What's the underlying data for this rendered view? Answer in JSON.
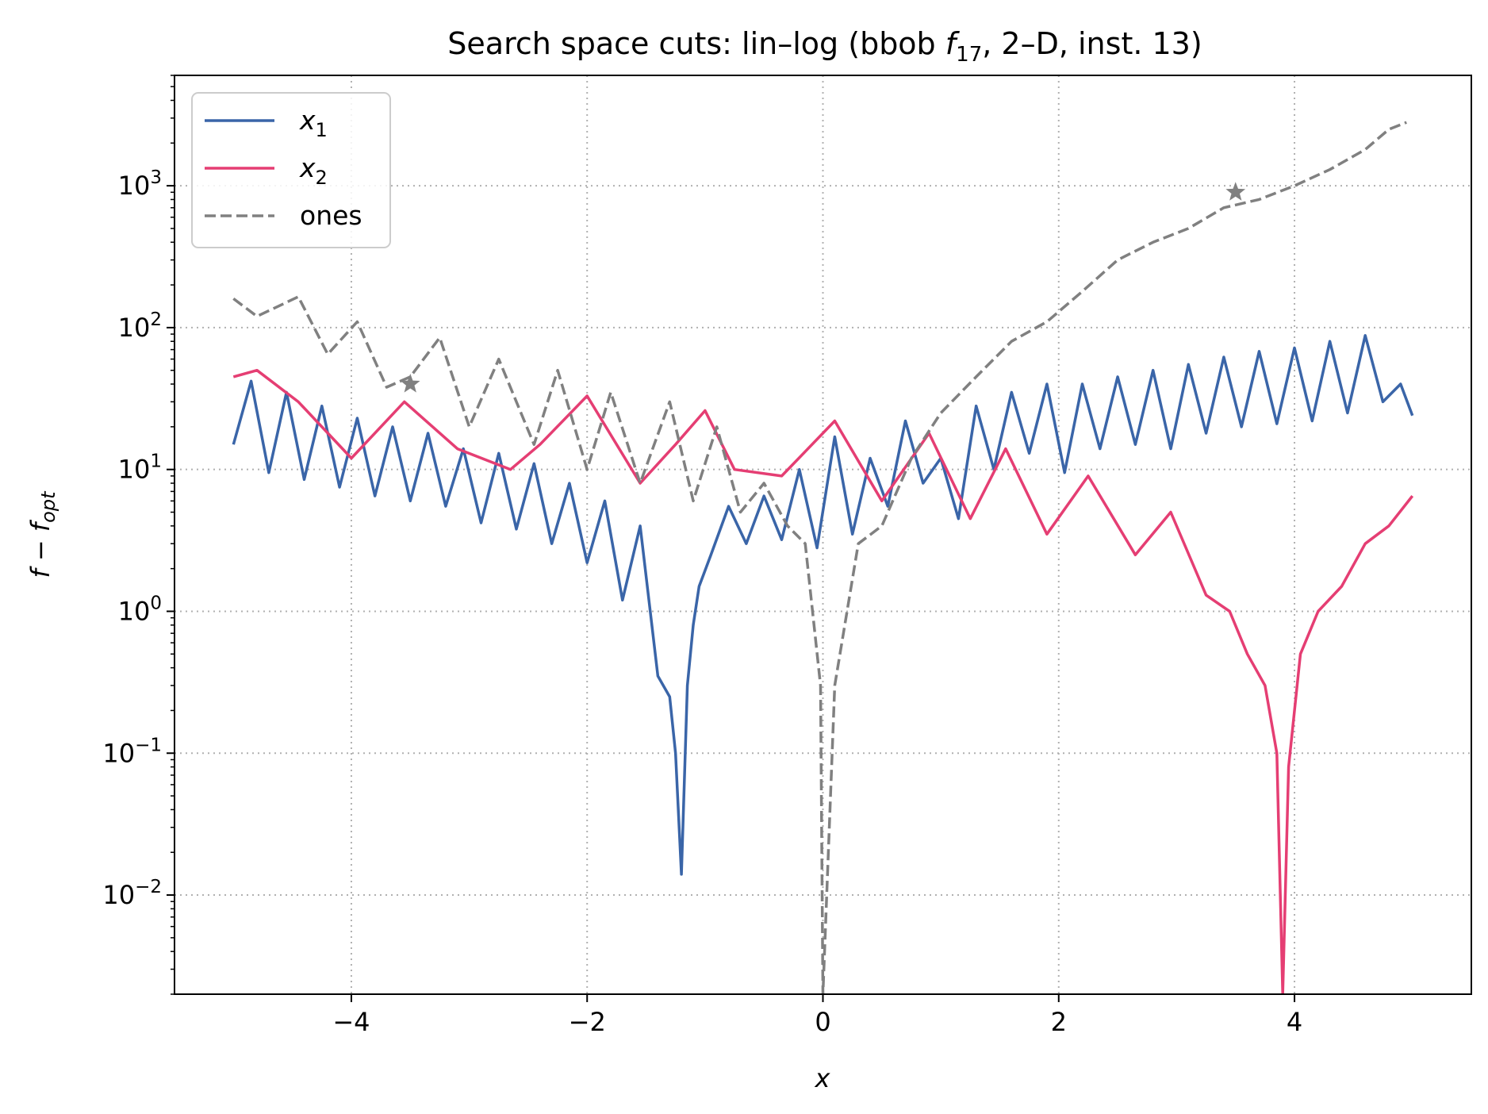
{
  "chart_data": {
    "type": "line",
    "title": {
      "main": "Search space cuts: lin–log (bbob ",
      "f": "f",
      "sub": "17",
      "rest": ", 2–D, inst. 13)"
    },
    "xlabel": "x",
    "ylabel": {
      "base": "f − f",
      "sub": "opt"
    },
    "xlim": [
      -5.5,
      5.5
    ],
    "ylim": [
      0.002,
      6000
    ],
    "yscale": "log",
    "grid": true,
    "legend_position": "top-left",
    "x_ticks": [
      {
        "value": -4,
        "label": "−4"
      },
      {
        "value": -2,
        "label": "−2"
      },
      {
        "value": 0,
        "label": "0"
      },
      {
        "value": 2,
        "label": "2"
      },
      {
        "value": 4,
        "label": "4"
      }
    ],
    "y_ticks": [
      {
        "value": 0.01,
        "base": "10",
        "exp": "−2"
      },
      {
        "value": 0.1,
        "base": "10",
        "exp": "−1"
      },
      {
        "value": 1,
        "base": "10",
        "exp": "0"
      },
      {
        "value": 10,
        "base": "10",
        "exp": "1"
      },
      {
        "value": 100,
        "base": "10",
        "exp": "2"
      },
      {
        "value": 1000,
        "base": "10",
        "exp": "3"
      }
    ],
    "series": [
      {
        "name": "x",
        "name_sub": "1",
        "color": "#3a65a8",
        "style": "solid",
        "x": [
          -5.0,
          -4.85,
          -4.7,
          -4.55,
          -4.4,
          -4.25,
          -4.1,
          -3.95,
          -3.8,
          -3.65,
          -3.5,
          -3.35,
          -3.2,
          -3.05,
          -2.9,
          -2.75,
          -2.6,
          -2.45,
          -2.3,
          -2.15,
          -2.0,
          -1.85,
          -1.7,
          -1.55,
          -1.4,
          -1.3,
          -1.25,
          -1.2,
          -1.15,
          -1.1,
          -1.05,
          -0.95,
          -0.8,
          -0.65,
          -0.5,
          -0.35,
          -0.2,
          -0.05,
          0.1,
          0.25,
          0.4,
          0.55,
          0.7,
          0.85,
          1.0,
          1.15,
          1.3,
          1.45,
          1.6,
          1.75,
          1.9,
          2.05,
          2.2,
          2.35,
          2.5,
          2.65,
          2.8,
          2.95,
          3.1,
          3.25,
          3.4,
          3.55,
          3.7,
          3.85,
          4.0,
          4.15,
          4.3,
          4.45,
          4.6,
          4.75,
          4.9,
          5.0
        ],
        "y": [
          15,
          42,
          9.5,
          35,
          8.5,
          28,
          7.5,
          23,
          6.5,
          20,
          6,
          18,
          5.5,
          14,
          4.2,
          13,
          3.8,
          11,
          3,
          8,
          2.2,
          6,
          1.2,
          4,
          0.35,
          0.25,
          0.1,
          0.014,
          0.3,
          0.8,
          1.5,
          2.5,
          5.5,
          3,
          6.5,
          3.2,
          10,
          2.8,
          17,
          3.5,
          12,
          5.5,
          22,
          8,
          12,
          4.5,
          28,
          10,
          35,
          13,
          40,
          9.5,
          40,
          14,
          45,
          15,
          50,
          14,
          55,
          18,
          62,
          20,
          68,
          21,
          72,
          22,
          80,
          25,
          88,
          30,
          40,
          24
        ]
      },
      {
        "name": "x",
        "name_sub": "2",
        "color": "#e53e73",
        "style": "solid",
        "x": [
          -5.0,
          -4.8,
          -4.45,
          -4.0,
          -3.55,
          -3.1,
          -2.65,
          -2.4,
          -2.0,
          -1.55,
          -1.25,
          -1.0,
          -0.75,
          -0.35,
          0.1,
          0.5,
          0.9,
          1.25,
          1.55,
          1.9,
          2.25,
          2.65,
          2.95,
          3.25,
          3.45,
          3.6,
          3.75,
          3.85,
          3.9,
          3.95,
          4.05,
          4.2,
          4.4,
          4.6,
          4.8,
          5.0
        ],
        "y": [
          45,
          50,
          30,
          12,
          30,
          14,
          10,
          15,
          33,
          8,
          15,
          26,
          10,
          9,
          22,
          6,
          18,
          4.5,
          14,
          3.5,
          9,
          2.5,
          5,
          1.3,
          1,
          0.5,
          0.3,
          0.1,
          0.002,
          0.08,
          0.5,
          1,
          1.5,
          3,
          4,
          6.5
        ]
      },
      {
        "name": "ones",
        "color": "#808080",
        "style": "dashed",
        "x": [
          -5.0,
          -4.8,
          -4.45,
          -4.2,
          -3.95,
          -3.7,
          -3.5,
          -3.25,
          -3.0,
          -2.75,
          -2.45,
          -2.25,
          -2.0,
          -1.8,
          -1.55,
          -1.3,
          -1.1,
          -0.9,
          -0.7,
          -0.5,
          -0.3,
          -0.15,
          -0.02,
          0.0,
          0.1,
          0.3,
          0.5,
          0.75,
          1.0,
          1.3,
          1.6,
          1.9,
          2.2,
          2.5,
          2.8,
          3.1,
          3.4,
          3.7,
          4.0,
          4.3,
          4.6,
          4.8,
          4.95
        ],
        "y": [
          160,
          120,
          165,
          65,
          110,
          38,
          45,
          85,
          20,
          60,
          15,
          50,
          10,
          35,
          8,
          30,
          6,
          20,
          5,
          8,
          4,
          3,
          0.3,
          0.002,
          0.3,
          3,
          4,
          12,
          25,
          45,
          80,
          110,
          180,
          300,
          400,
          500,
          700,
          800,
          1000,
          1300,
          1800,
          2500,
          2800
        ]
      }
    ],
    "markers": [
      {
        "x": -3.5,
        "y": 40,
        "symbol": "star",
        "color": "#808080"
      },
      {
        "x": 3.5,
        "y": 900,
        "symbol": "star",
        "color": "#808080"
      }
    ]
  }
}
